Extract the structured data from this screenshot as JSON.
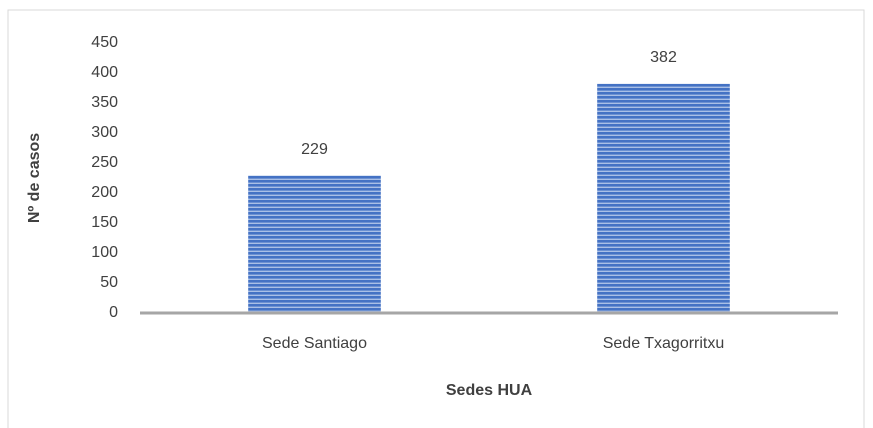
{
  "chart_data": {
    "type": "bar",
    "categories": [
      "Sede Santiago",
      "Sede Txagorritxu"
    ],
    "values": [
      229,
      382
    ],
    "color": "#4472c4",
    "xlabel": "Sedes HUA",
    "ylabel": "Nº de casos",
    "ylim": [
      0,
      450
    ],
    "yticks": [
      0,
      50,
      100,
      150,
      200,
      250,
      300,
      350,
      400,
      450
    ],
    "grid": false
  }
}
